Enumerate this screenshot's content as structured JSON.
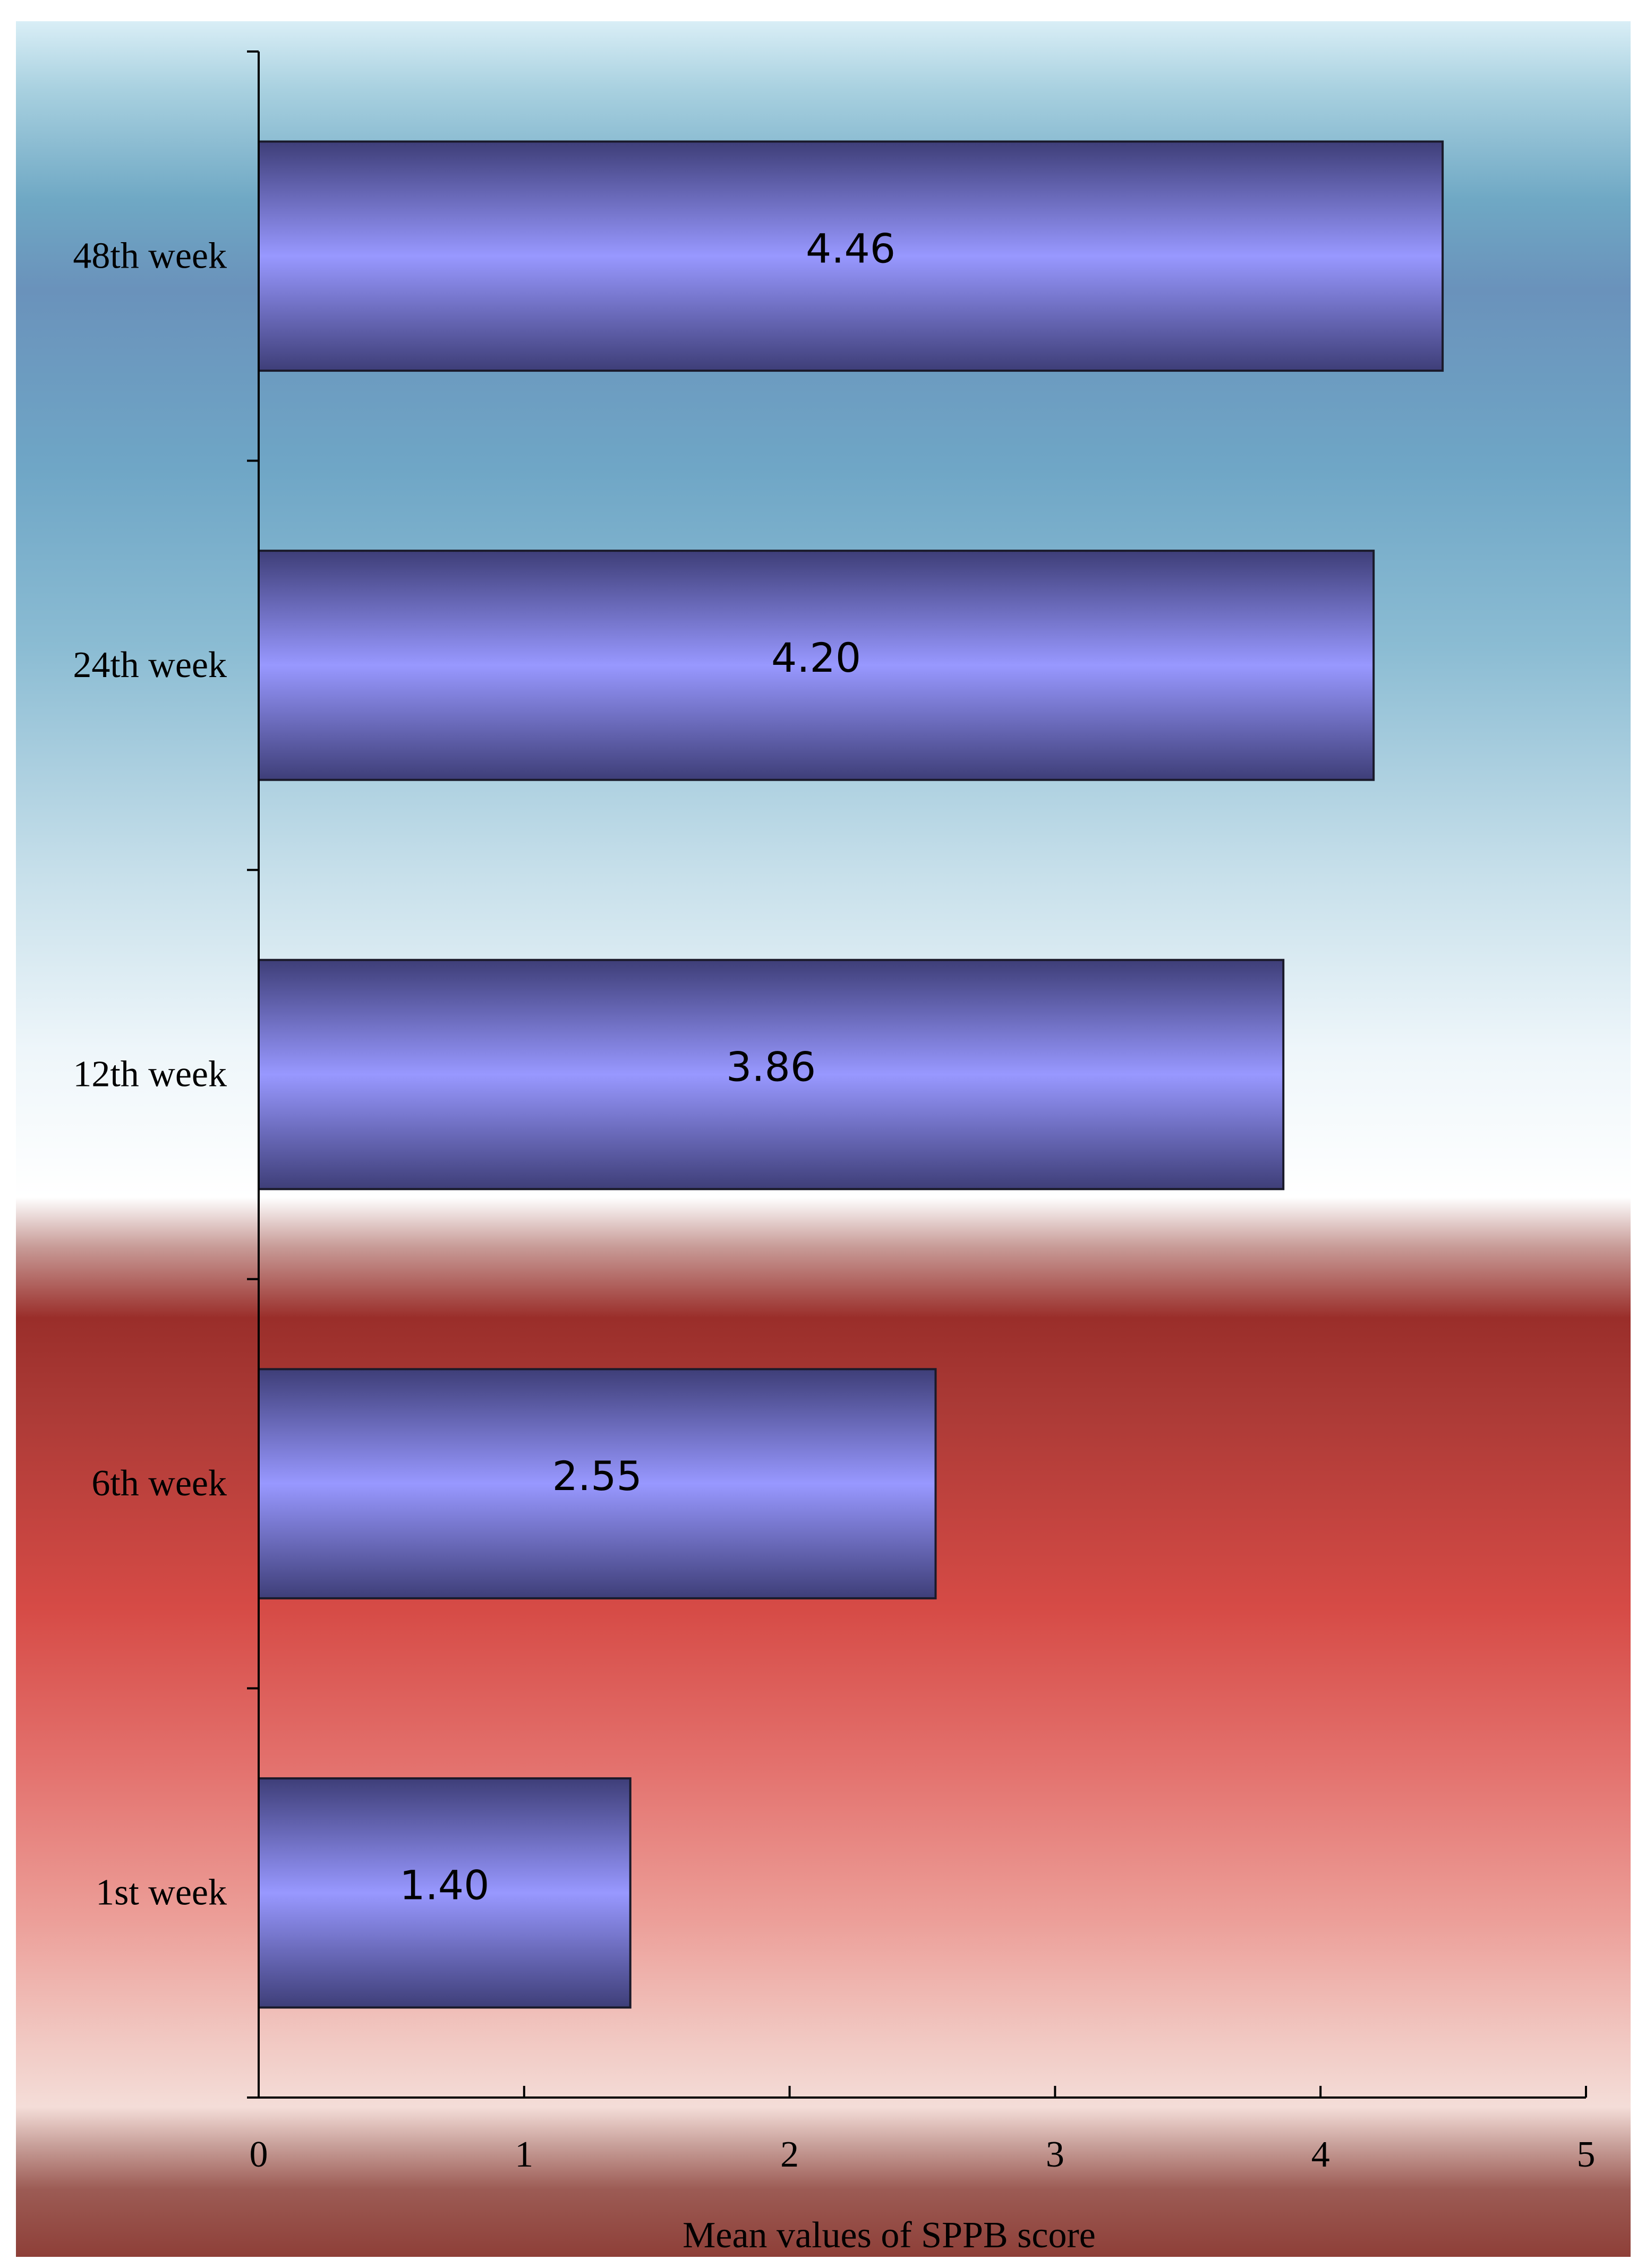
{
  "chart_data": {
    "type": "bar",
    "orientation": "horizontal",
    "categories": [
      "1st week",
      "6th week",
      "12th week",
      "24th week",
      "48th week"
    ],
    "values": [
      1.4,
      2.55,
      3.86,
      4.2,
      4.46
    ],
    "data_labels": [
      "1.40",
      "2.55",
      "3.86",
      "4.20",
      "4.46"
    ],
    "xlabel": "Mean values of SPPB  score",
    "xlim": [
      0,
      5
    ],
    "xticks": [
      "0",
      "1",
      "2",
      "3",
      "4",
      "5"
    ],
    "grid": false,
    "legend": "none",
    "colors": {
      "bar_center": "#9898ff",
      "bar_edge": "#3e3e78",
      "bar_outline": "#1a1a2a",
      "axis": "#000000"
    }
  }
}
